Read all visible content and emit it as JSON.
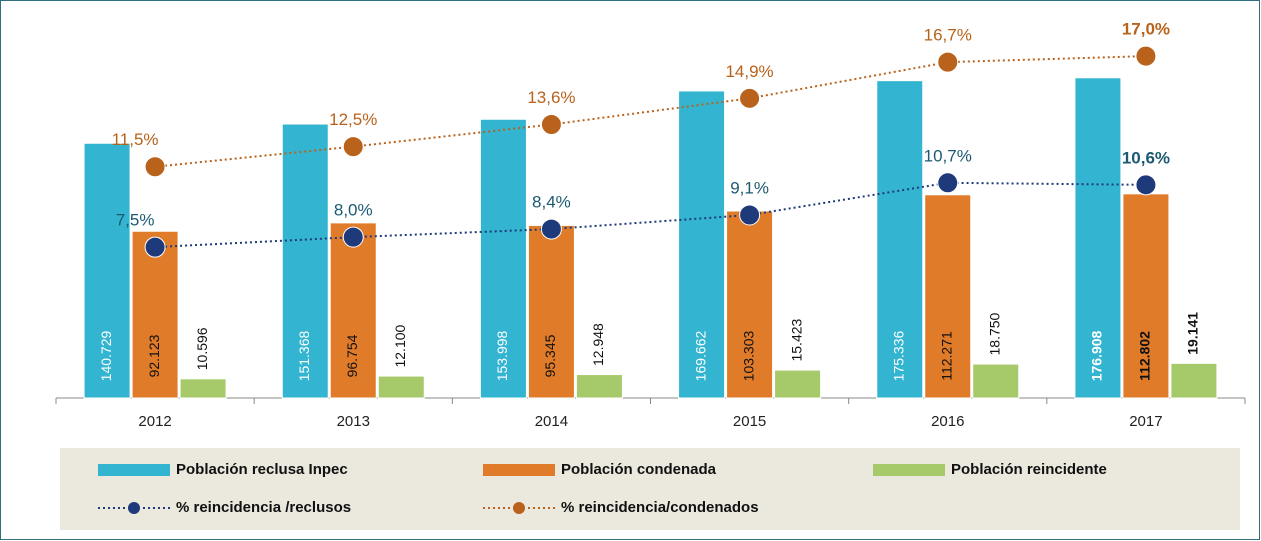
{
  "chart_data": {
    "type": "bar",
    "categories": [
      "2012",
      "2013",
      "2014",
      "2015",
      "2016",
      "2017"
    ],
    "series": [
      {
        "name": "Población reclusa Inpec",
        "type": "bar",
        "color": "#33b5d1",
        "values": [
          140729,
          151368,
          153998,
          169662,
          175336,
          176908
        ],
        "value_labels": [
          "140.729",
          "151.368",
          "153.998",
          "169.662",
          "175.336",
          "176.908"
        ]
      },
      {
        "name": "Población condenada",
        "type": "bar",
        "color": "#e07b2a",
        "values": [
          92123,
          96754,
          95345,
          103303,
          112271,
          112802
        ],
        "value_labels": [
          "92.123",
          "96.754",
          "95.345",
          "103.303",
          "112.271",
          "112.802"
        ]
      },
      {
        "name": "Población reincidente",
        "type": "bar",
        "color": "#a6c96a",
        "values": [
          10596,
          12100,
          12948,
          15423,
          18750,
          19141
        ],
        "value_labels": [
          "10.596",
          "12.100",
          "12.948",
          "15.423",
          "18.750",
          "19.141"
        ]
      },
      {
        "name": "% reincidencia /reclusos",
        "type": "line",
        "axis": "y2",
        "color": "#1f3a7a",
        "label_color": "#1b5a72",
        "values": [
          7.5,
          8.0,
          8.4,
          9.1,
          10.7,
          10.6
        ],
        "value_labels": [
          "7,5%",
          "8,0%",
          "8,4%",
          "9,1%",
          "10,7%",
          "10,6%"
        ]
      },
      {
        "name": "% reincidencia/condenados",
        "type": "line",
        "axis": "y2",
        "color": "#b8621b",
        "label_color": "#b8621b",
        "values": [
          11.5,
          12.5,
          13.6,
          14.9,
          16.7,
          17.0
        ],
        "value_labels": [
          "11,5%",
          "12,5%",
          "13,6%",
          "14,9%",
          "16,7%",
          "17,0%"
        ]
      }
    ],
    "ylim": [
      0,
      200000
    ],
    "y2lim": [
      0,
      18
    ]
  }
}
